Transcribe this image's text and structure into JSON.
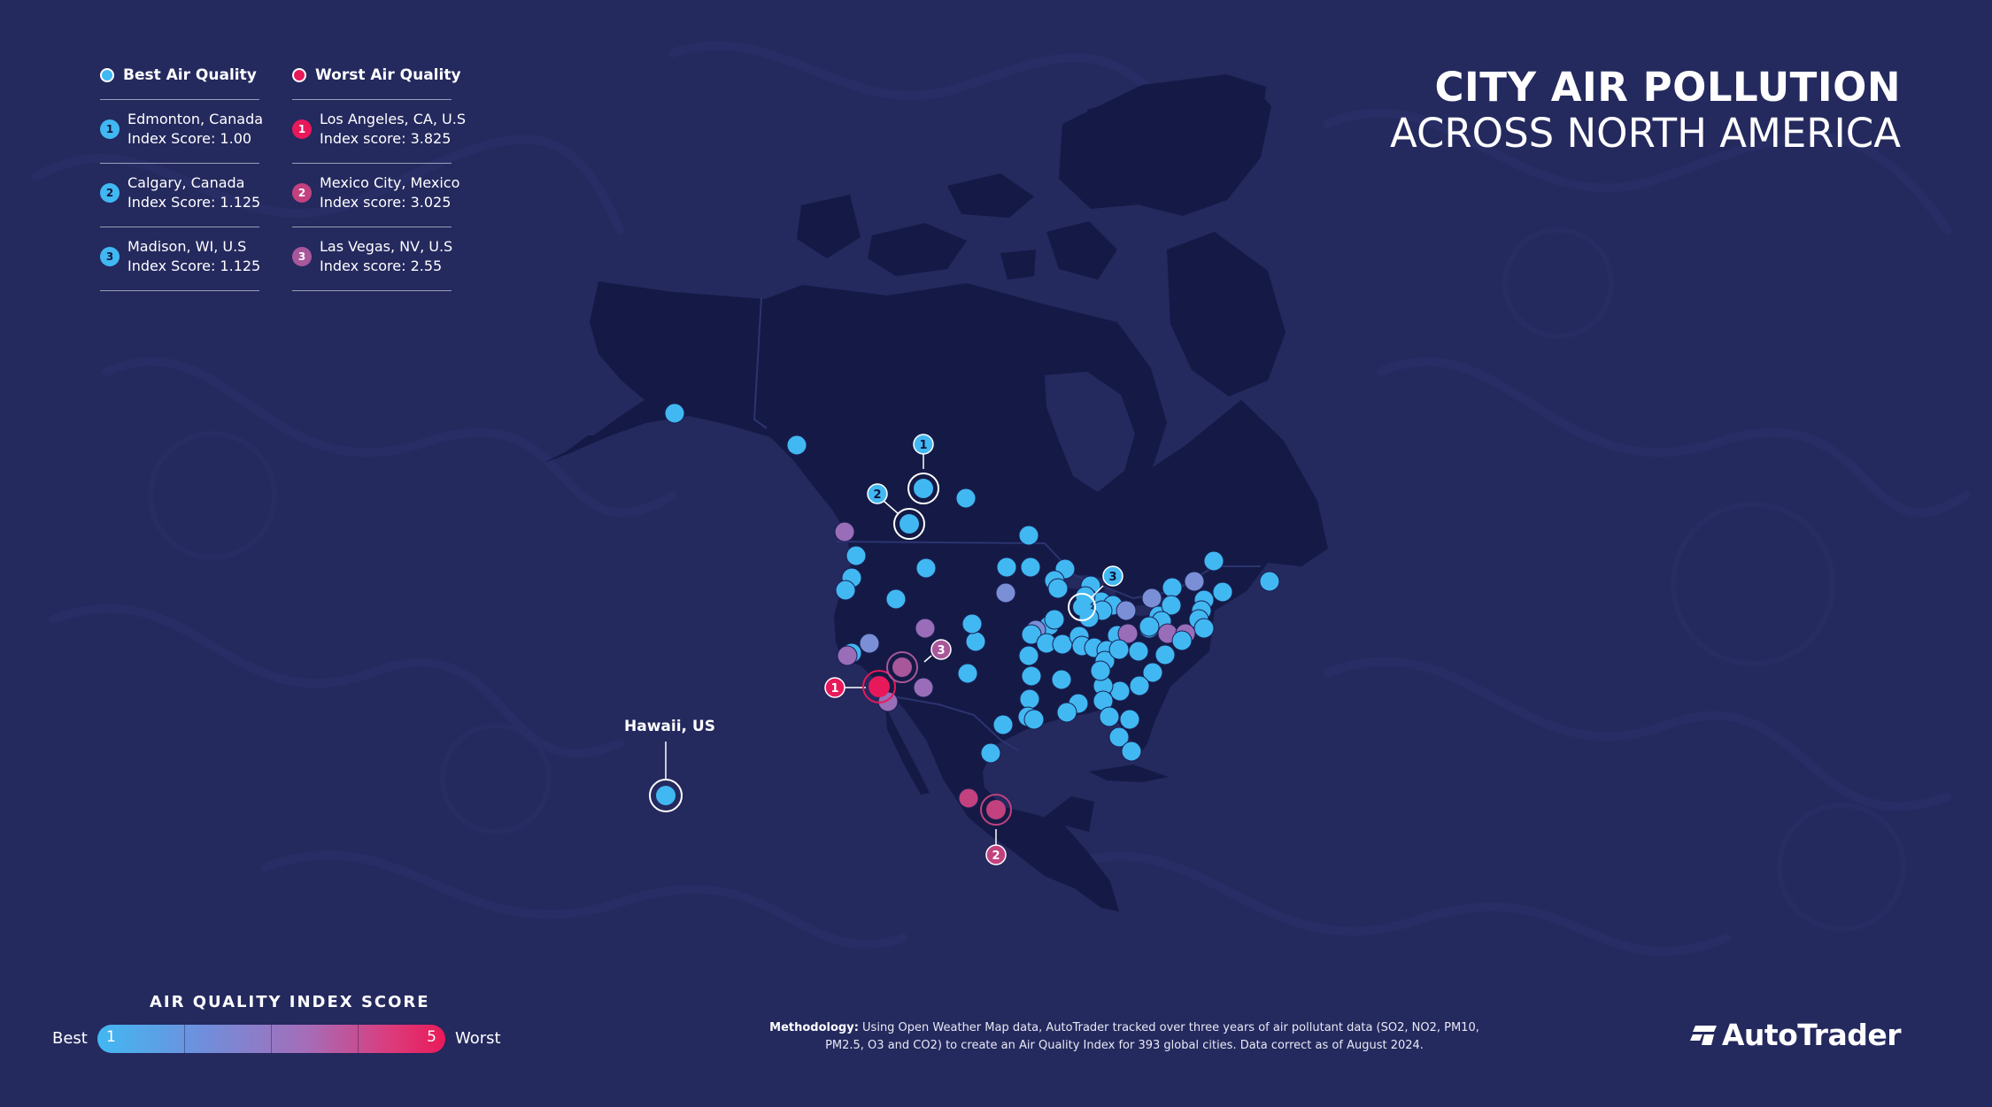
{
  "title": {
    "line1": "CITY AIR POLLUTION",
    "line2": "ACROSS NORTH AMERICA"
  },
  "legend": {
    "best": {
      "heading": "Best Air Quality",
      "color": "#41b8f2",
      "items": [
        {
          "rank": "1",
          "city": "Edmonton, Canada",
          "score": "Index Score: 1.00"
        },
        {
          "rank": "2",
          "city": "Calgary, Canada",
          "score": "Index Score: 1.125"
        },
        {
          "rank": "3",
          "city": "Madison, WI, U.S",
          "score": "Index Score: 1.125"
        }
      ]
    },
    "worst": {
      "heading": "Worst Air Quality",
      "color": "#e8195a",
      "items": [
        {
          "rank": "1",
          "city": "Los Angeles, CA, U.S",
          "score": "Index score: 3.825",
          "color": "#e8195a"
        },
        {
          "rank": "2",
          "city": "Mexico City, Mexico",
          "score": "Index score: 3.025",
          "color": "#c2417e"
        },
        {
          "rank": "3",
          "city": "Las Vegas, NV, U.S",
          "score": "Index score: 2.55",
          "color": "#a8579a"
        }
      ]
    }
  },
  "map": {
    "hawaii_label": "Hawaii,  US",
    "colors": {
      "land": "#141a45",
      "sea": "#24295e",
      "border": "#2c3470",
      "best": "#41b8f2",
      "worst": "#e8195a"
    },
    "callouts": {
      "best": [
        "1",
        "2",
        "3"
      ],
      "worst": [
        "1",
        "2",
        "3"
      ]
    }
  },
  "scale": {
    "title": "AIR QUALITY INDEX SCORE",
    "best_label": "Best",
    "worst_label": "Worst",
    "min": "1",
    "max": "5"
  },
  "methodology": {
    "label": "Methodology:",
    "text_line1": " Using Open Weather Map data, AutoTrader tracked over three years of air pollutant data (SO2, NO2, PM10,",
    "text_line2": "PM2.5, O3 and CO2) to create an Air Quality Index  for 393 global cities. Data correct as of August 2024."
  },
  "brand": {
    "name": "AutoTrader",
    "icon": "autotrader-logo-icon"
  }
}
